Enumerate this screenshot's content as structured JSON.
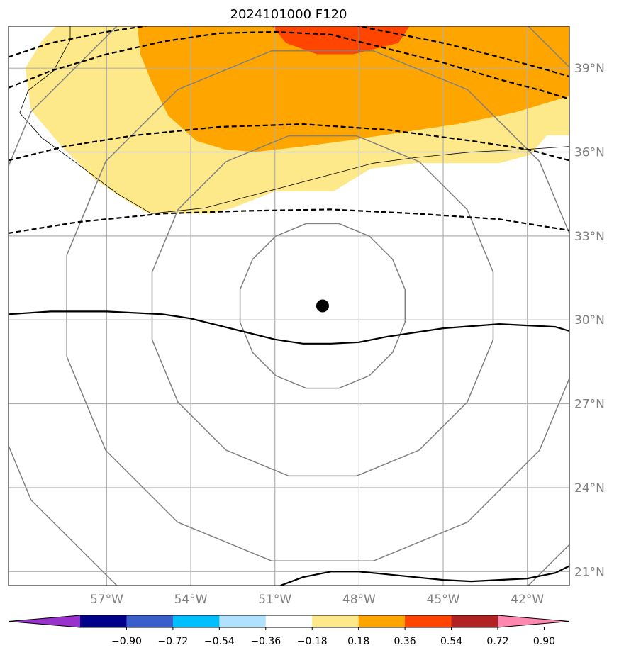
{
  "chart_data": {
    "type": "map",
    "title": "2024101000 F120",
    "grid": true,
    "map_extent": {
      "lon": [
        -60.5,
        -40.5
      ],
      "lat": [
        20.5,
        40.5
      ]
    },
    "lon_ticks": [
      {
        "value": -57,
        "label": "57°W"
      },
      {
        "value": -54,
        "label": "54°W"
      },
      {
        "value": -51,
        "label": "51°W"
      },
      {
        "value": -48,
        "label": "48°W"
      },
      {
        "value": -45,
        "label": "45°W"
      },
      {
        "value": -42,
        "label": "42°W"
      }
    ],
    "lat_ticks": [
      {
        "value": 39,
        "label": "39°N"
      },
      {
        "value": 36,
        "label": "36°N"
      },
      {
        "value": 33,
        "label": "33°N"
      },
      {
        "value": 30,
        "label": "30°N"
      },
      {
        "value": 27,
        "label": "27°N"
      },
      {
        "value": 24,
        "label": "24°N"
      },
      {
        "value": 21,
        "label": "21°N"
      }
    ],
    "storm_center": {
      "lon": -49.3,
      "lat": 30.5
    },
    "gray_contour_radii_deg": [
      3.0,
      6.2,
      9.3,
      12.5
    ],
    "filled_regions": [
      {
        "level": "0.18-0.36",
        "color": "#fee98a",
        "polygon": [
          [
            -58.8,
            40.5
          ],
          [
            -59.3,
            40.0
          ],
          [
            -59.9,
            39.0
          ],
          [
            -59.7,
            37.5
          ],
          [
            -58.6,
            36.2
          ],
          [
            -57.4,
            35.0
          ],
          [
            -56.2,
            34.2
          ],
          [
            -55.5,
            33.8
          ],
          [
            -53.3,
            33.8
          ],
          [
            -52.5,
            34.0
          ],
          [
            -51.0,
            34.6
          ],
          [
            -48.9,
            34.6
          ],
          [
            -47.6,
            35.4
          ],
          [
            -46.0,
            35.6
          ],
          [
            -44.3,
            35.6
          ],
          [
            -43.0,
            35.6
          ],
          [
            -41.9,
            35.9
          ],
          [
            -41.3,
            36.6
          ],
          [
            -40.5,
            36.6
          ],
          [
            -40.5,
            40.5
          ]
        ]
      },
      {
        "level": "0.36-0.54",
        "color": "#ffa500",
        "polygon": [
          [
            -55.9,
            40.5
          ],
          [
            -55.8,
            39.5
          ],
          [
            -55.4,
            38.5
          ],
          [
            -54.8,
            37.3
          ],
          [
            -53.8,
            36.4
          ],
          [
            -52.8,
            36.1
          ],
          [
            -51.7,
            36.0
          ],
          [
            -50.0,
            36.2
          ],
          [
            -48.5,
            36.4
          ],
          [
            -46.5,
            36.7
          ],
          [
            -44.5,
            37.0
          ],
          [
            -42.5,
            37.4
          ],
          [
            -40.5,
            38.0
          ],
          [
            -40.5,
            40.5
          ]
        ]
      },
      {
        "level": "0.54-0.72",
        "color": "#ff4500",
        "polygon": [
          [
            -51.1,
            40.5
          ],
          [
            -50.6,
            39.9
          ],
          [
            -49.5,
            39.5
          ],
          [
            -48.2,
            39.5
          ],
          [
            -46.6,
            39.9
          ],
          [
            -46.2,
            40.5
          ]
        ]
      }
    ],
    "dashed_lines": [
      [
        [
          -60.5,
          39.4
        ],
        [
          -59.0,
          39.9
        ],
        [
          -57.0,
          40.3
        ],
        [
          -55.0,
          40.6
        ],
        [
          -53.0,
          40.75
        ],
        [
          -51.0,
          40.8
        ],
        [
          -49.0,
          40.7
        ],
        [
          -47.0,
          40.3
        ],
        [
          -45.0,
          39.9
        ],
        [
          -43.0,
          39.4
        ],
        [
          -41.5,
          39.0
        ],
        [
          -40.5,
          38.7
        ]
      ],
      [
        [
          -60.5,
          38.3
        ],
        [
          -59.0,
          38.9
        ],
        [
          -57.0,
          39.5
        ],
        [
          -55.0,
          39.95
        ],
        [
          -53.0,
          40.25
        ],
        [
          -51.0,
          40.3
        ],
        [
          -49.0,
          40.2
        ],
        [
          -47.0,
          39.7
        ],
        [
          -45.0,
          39.2
        ],
        [
          -43.0,
          38.6
        ],
        [
          -41.5,
          38.2
        ],
        [
          -40.5,
          37.9
        ]
      ],
      [
        [
          -60.5,
          35.7
        ],
        [
          -58.5,
          36.2
        ],
        [
          -56.0,
          36.6
        ],
        [
          -53.0,
          36.9
        ],
        [
          -50.0,
          37.0
        ],
        [
          -47.0,
          36.8
        ],
        [
          -44.0,
          36.4
        ],
        [
          -42.0,
          36.1
        ],
        [
          -40.5,
          35.7
        ]
      ],
      [
        [
          -60.5,
          33.1
        ],
        [
          -58.0,
          33.5
        ],
        [
          -55.0,
          33.8
        ],
        [
          -52.0,
          33.9
        ],
        [
          -49.0,
          33.95
        ],
        [
          -46.0,
          33.8
        ],
        [
          -43.0,
          33.6
        ],
        [
          -40.5,
          33.2
        ]
      ]
    ],
    "solid_lines": [
      [
        [
          -60.5,
          30.2
        ],
        [
          -59.0,
          30.3
        ],
        [
          -57.0,
          30.3
        ],
        [
          -55.0,
          30.2
        ],
        [
          -54.0,
          30.05
        ],
        [
          -52.0,
          29.55
        ],
        [
          -51.0,
          29.3
        ],
        [
          -50.0,
          29.15
        ],
        [
          -49.0,
          29.15
        ],
        [
          -48.0,
          29.2
        ],
        [
          -47.0,
          29.4
        ],
        [
          -45.0,
          29.7
        ],
        [
          -43.0,
          29.85
        ],
        [
          -42.0,
          29.8
        ],
        [
          -41.0,
          29.75
        ],
        [
          -40.5,
          29.6
        ]
      ],
      [
        [
          -50.8,
          20.5
        ],
        [
          -50.0,
          20.8
        ],
        [
          -49.0,
          21.0
        ],
        [
          -48.0,
          21.0
        ],
        [
          -47.0,
          20.9
        ],
        [
          -46.0,
          20.8
        ],
        [
          -45.0,
          20.7
        ],
        [
          -44.0,
          20.65
        ],
        [
          -43.0,
          20.7
        ],
        [
          -42.0,
          20.75
        ],
        [
          -41.0,
          20.95
        ],
        [
          -40.5,
          21.2
        ]
      ]
    ],
    "coastlines": [
      [
        [
          -58.3,
          40.5
        ],
        [
          -58.3,
          40.0
        ],
        [
          -58.9,
          38.9
        ],
        [
          -59.8,
          38.2
        ],
        [
          -60.1,
          37.4
        ],
        [
          -59.3,
          36.5
        ],
        [
          -58.2,
          35.7
        ],
        [
          -56.6,
          34.5
        ],
        [
          -55.4,
          33.8
        ]
      ],
      [
        [
          -55.4,
          33.8
        ],
        [
          -53.5,
          34.0
        ],
        [
          -52.0,
          34.4
        ],
        [
          -50.5,
          34.8
        ],
        [
          -49.0,
          35.2
        ],
        [
          -47.5,
          35.6
        ],
        [
          -46.0,
          35.8
        ],
        [
          -44.0,
          36.0
        ],
        [
          -42.0,
          36.1
        ],
        [
          -40.5,
          36.2
        ]
      ]
    ],
    "colorbar": {
      "colors": [
        "#9932cc",
        "#00008b",
        "#3a5fcd",
        "#00bfff",
        "#b0e2ff",
        "#ffffff",
        "#fee98a",
        "#ffa500",
        "#ff4500",
        "#b22222",
        "#ff88b0"
      ],
      "ticks": [
        "−0.90",
        "−0.72",
        "−0.54",
        "−0.36",
        "−0.18",
        "0.18",
        "0.36",
        "0.54",
        "0.72",
        "0.90"
      ]
    }
  }
}
